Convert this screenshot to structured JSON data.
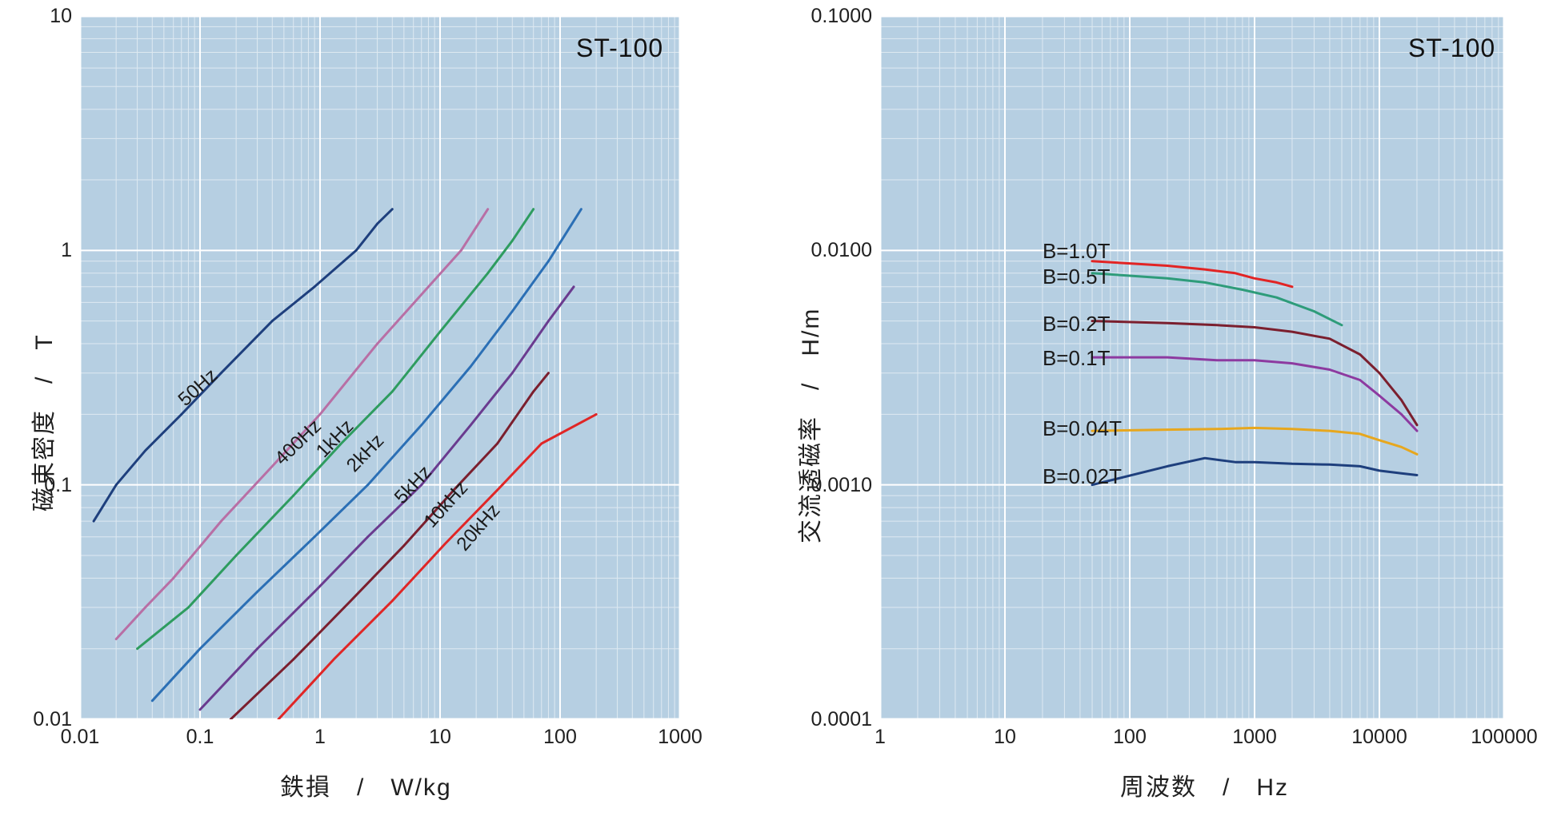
{
  "material_label": "ST-100",
  "left_chart": {
    "type": "line-loglog",
    "plot_bg": "#b6cfe2",
    "major_grid_color": "#ffffff",
    "minor_grid_color": "#ffffff",
    "major_grid_width": 2.0,
    "minor_grid_width": 1.0,
    "axis_color": "#1a1a1a",
    "line_width": 3.0,
    "x": {
      "label": "鉄損　/　W/kg",
      "min": 0.01,
      "max": 1000,
      "decades": [
        0.01,
        0.1,
        1,
        10,
        100,
        1000
      ],
      "tick_labels": [
        "0.01",
        "0.1",
        "1",
        "10",
        "100",
        "1000"
      ],
      "label_fontsize": 30,
      "tick_fontsize": 25
    },
    "y": {
      "label": "磁束密度　/　T",
      "min": 0.01,
      "max": 10,
      "decades": [
        0.01,
        0.1,
        1,
        10
      ],
      "tick_labels": [
        "0.01",
        "0.1",
        "1",
        "10"
      ],
      "label_fontsize": 30,
      "tick_fontsize": 25
    },
    "series": [
      {
        "name": "50Hz",
        "color": "#1e3f7d",
        "pts": [
          [
            0.013,
            0.07
          ],
          [
            0.02,
            0.1
          ],
          [
            0.035,
            0.14
          ],
          [
            0.07,
            0.2
          ],
          [
            0.15,
            0.3
          ],
          [
            0.4,
            0.5
          ],
          [
            0.9,
            0.7
          ],
          [
            2.0,
            1.0
          ],
          [
            3.0,
            1.3
          ],
          [
            4.0,
            1.5
          ]
        ],
        "label_at": [
          0.07,
          0.25
        ],
        "label_angle": -42
      },
      {
        "name": "400Hz",
        "color": "#b86fa5",
        "pts": [
          [
            0.02,
            0.022
          ],
          [
            0.035,
            0.03
          ],
          [
            0.06,
            0.04
          ],
          [
            0.15,
            0.07
          ],
          [
            0.4,
            0.12
          ],
          [
            1.0,
            0.2
          ],
          [
            3.0,
            0.4
          ],
          [
            8.0,
            0.7
          ],
          [
            15.0,
            1.0
          ],
          [
            25.0,
            1.5
          ]
        ],
        "label_at": [
          0.45,
          0.14
        ],
        "label_angle": -44
      },
      {
        "name": "1kHz",
        "color": "#2e9c5f",
        "pts": [
          [
            0.03,
            0.02
          ],
          [
            0.08,
            0.03
          ],
          [
            0.2,
            0.05
          ],
          [
            0.6,
            0.09
          ],
          [
            1.5,
            0.15
          ],
          [
            4.0,
            0.25
          ],
          [
            10.0,
            0.45
          ],
          [
            25.0,
            0.8
          ],
          [
            40.0,
            1.1
          ],
          [
            60.0,
            1.5
          ]
        ],
        "label_at": [
          1.0,
          0.15
        ],
        "label_angle": -46
      },
      {
        "name": "2kHz",
        "color": "#2b6fb5",
        "pts": [
          [
            0.04,
            0.012
          ],
          [
            0.1,
            0.02
          ],
          [
            0.3,
            0.035
          ],
          [
            0.9,
            0.06
          ],
          [
            2.5,
            0.1
          ],
          [
            7.0,
            0.18
          ],
          [
            18.0,
            0.32
          ],
          [
            40.0,
            0.55
          ],
          [
            80.0,
            0.9
          ],
          [
            150.0,
            1.5
          ]
        ],
        "label_at": [
          1.8,
          0.13
        ],
        "label_angle": -46
      },
      {
        "name": "5kHz",
        "color": "#6a3b8f",
        "pts": [
          [
            0.1,
            0.011
          ],
          [
            0.3,
            0.02
          ],
          [
            0.9,
            0.035
          ],
          [
            2.5,
            0.06
          ],
          [
            7.0,
            0.1
          ],
          [
            18.0,
            0.18
          ],
          [
            40.0,
            0.3
          ],
          [
            80.0,
            0.5
          ],
          [
            130.0,
            0.7
          ]
        ],
        "label_at": [
          4.5,
          0.095
        ],
        "label_angle": -47
      },
      {
        "name": "10kHz",
        "color": "#7b1f2e",
        "pts": [
          [
            0.18,
            0.01
          ],
          [
            0.6,
            0.018
          ],
          [
            1.8,
            0.032
          ],
          [
            5.0,
            0.055
          ],
          [
            13.0,
            0.095
          ],
          [
            30.0,
            0.15
          ],
          [
            60.0,
            0.25
          ],
          [
            80.0,
            0.3
          ]
        ],
        "label_at": [
          8.0,
          0.075
        ],
        "label_angle": -48
      },
      {
        "name": "20kHz",
        "color": "#e02626",
        "pts": [
          [
            0.45,
            0.01
          ],
          [
            1.3,
            0.018
          ],
          [
            4.0,
            0.032
          ],
          [
            11.0,
            0.056
          ],
          [
            30.0,
            0.095
          ],
          [
            70.0,
            0.15
          ],
          [
            200.0,
            0.2
          ]
        ],
        "label_at": [
          15.0,
          0.06
        ],
        "label_angle": -49
      }
    ]
  },
  "right_chart": {
    "type": "line-loglog",
    "plot_bg": "#b6cfe2",
    "major_grid_color": "#ffffff",
    "minor_grid_color": "#ffffff",
    "major_grid_width": 2.0,
    "minor_grid_width": 1.0,
    "axis_color": "#1a1a1a",
    "line_width": 3.0,
    "x": {
      "label": "周波数　/　Hz",
      "min": 1,
      "max": 100000,
      "decades": [
        1,
        10,
        100,
        1000,
        10000,
        100000
      ],
      "tick_labels": [
        "1",
        "10",
        "100",
        "1000",
        "10000",
        "100000"
      ],
      "label_fontsize": 30,
      "tick_fontsize": 25
    },
    "y": {
      "label": "交流透磁率　/　H/m",
      "min": 0.0001,
      "max": 0.1,
      "decades": [
        0.0001,
        0.001,
        0.01,
        0.1
      ],
      "tick_labels": [
        "0.0001",
        "0.0010",
        "0.0100",
        "0.1000"
      ],
      "label_fontsize": 30,
      "tick_fontsize": 25
    },
    "series": [
      {
        "name": "B=1.0T",
        "color": "#e22424",
        "pts": [
          [
            50,
            0.009
          ],
          [
            100,
            0.0088
          ],
          [
            200,
            0.0086
          ],
          [
            400,
            0.0083
          ],
          [
            700,
            0.008
          ],
          [
            1000,
            0.0076
          ],
          [
            1500,
            0.0073
          ],
          [
            2000,
            0.007
          ]
        ],
        "label_at": [
          20,
          0.01
        ],
        "label_side": "left"
      },
      {
        "name": "B=0.5T",
        "color": "#2e9c7a",
        "pts": [
          [
            50,
            0.008
          ],
          [
            100,
            0.0078
          ],
          [
            200,
            0.0076
          ],
          [
            400,
            0.0073
          ],
          [
            800,
            0.0068
          ],
          [
            1500,
            0.0063
          ],
          [
            3000,
            0.0055
          ],
          [
            5000,
            0.0048
          ]
        ],
        "label_at": [
          20,
          0.0078
        ],
        "label_side": "left"
      },
      {
        "name": "B=0.2T",
        "color": "#7b1f2e",
        "pts": [
          [
            50,
            0.005
          ],
          [
            200,
            0.0049
          ],
          [
            500,
            0.0048
          ],
          [
            1000,
            0.0047
          ],
          [
            2000,
            0.0045
          ],
          [
            4000,
            0.0042
          ],
          [
            7000,
            0.0036
          ],
          [
            10000,
            0.003
          ],
          [
            15000,
            0.0023
          ],
          [
            20000,
            0.0018
          ]
        ],
        "label_at": [
          20,
          0.0049
        ],
        "label_side": "left"
      },
      {
        "name": "B=0.1T",
        "color": "#8d3aa0",
        "pts": [
          [
            50,
            0.0035
          ],
          [
            200,
            0.0035
          ],
          [
            500,
            0.0034
          ],
          [
            1000,
            0.0034
          ],
          [
            2000,
            0.0033
          ],
          [
            4000,
            0.0031
          ],
          [
            7000,
            0.0028
          ],
          [
            10000,
            0.0024
          ],
          [
            15000,
            0.002
          ],
          [
            20000,
            0.0017
          ]
        ],
        "label_at": [
          20,
          0.0035
        ],
        "label_side": "left"
      },
      {
        "name": "B=0.04T",
        "color": "#e7a71e",
        "pts": [
          [
            50,
            0.0017
          ],
          [
            200,
            0.00172
          ],
          [
            500,
            0.00173
          ],
          [
            1000,
            0.00175
          ],
          [
            2000,
            0.00173
          ],
          [
            4000,
            0.0017
          ],
          [
            7000,
            0.00165
          ],
          [
            10000,
            0.00155
          ],
          [
            15000,
            0.00145
          ],
          [
            20000,
            0.00135
          ]
        ],
        "label_at": [
          20,
          0.00175
        ],
        "label_side": "left"
      },
      {
        "name": "B=0.02T",
        "color": "#1e3f7d",
        "pts": [
          [
            50,
            0.001
          ],
          [
            200,
            0.0012
          ],
          [
            400,
            0.0013
          ],
          [
            700,
            0.00125
          ],
          [
            1000,
            0.00125
          ],
          [
            2000,
            0.00123
          ],
          [
            4000,
            0.00122
          ],
          [
            7000,
            0.0012
          ],
          [
            10000,
            0.00115
          ],
          [
            15000,
            0.00112
          ],
          [
            20000,
            0.0011
          ]
        ],
        "label_at": [
          20,
          0.0011
        ],
        "label_side": "left"
      }
    ]
  }
}
